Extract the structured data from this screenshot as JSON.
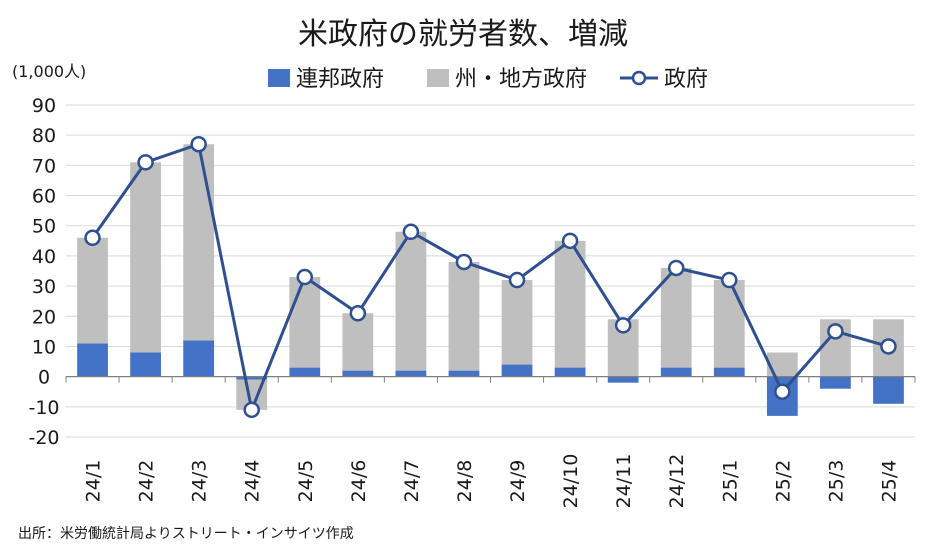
{
  "chart_data": {
    "type": "bar",
    "stacked": true,
    "title": "米政府の就労者数、増減",
    "unit_label": "(1,000人)",
    "source": "出所：米労働統計局よりストリート・インサイツ作成",
    "categories": [
      "24/1",
      "24/2",
      "24/3",
      "24/4",
      "24/5",
      "24/6",
      "24/7",
      "24/8",
      "24/9",
      "24/10",
      "24/11",
      "24/12",
      "25/1",
      "25/2",
      "25/3",
      "25/4"
    ],
    "ylim": [
      -20,
      90
    ],
    "yticks": [
      90,
      80,
      70,
      60,
      50,
      40,
      30,
      20,
      10,
      0,
      -10,
      -20
    ],
    "grid": true,
    "legend_position": "top",
    "series": [
      {
        "name": "連邦政府",
        "kind": "bar",
        "color": "#4472C4",
        "values": [
          11,
          8,
          12,
          -1,
          3,
          2,
          2,
          2,
          4,
          3,
          -2,
          3,
          3,
          -13,
          -4,
          -9
        ]
      },
      {
        "name": "州・地方政府",
        "kind": "bar",
        "color": "#BFBFBF",
        "values": [
          35,
          63,
          65,
          -10,
          30,
          19,
          46,
          36,
          28,
          42,
          19,
          33,
          29,
          8,
          19,
          19
        ]
      },
      {
        "name": "政府",
        "kind": "line",
        "color": "#2F4F8F",
        "values": [
          46,
          71,
          77,
          -11,
          33,
          21,
          48,
          38,
          32,
          45,
          17,
          36,
          32,
          -5,
          15,
          10
        ]
      }
    ]
  }
}
